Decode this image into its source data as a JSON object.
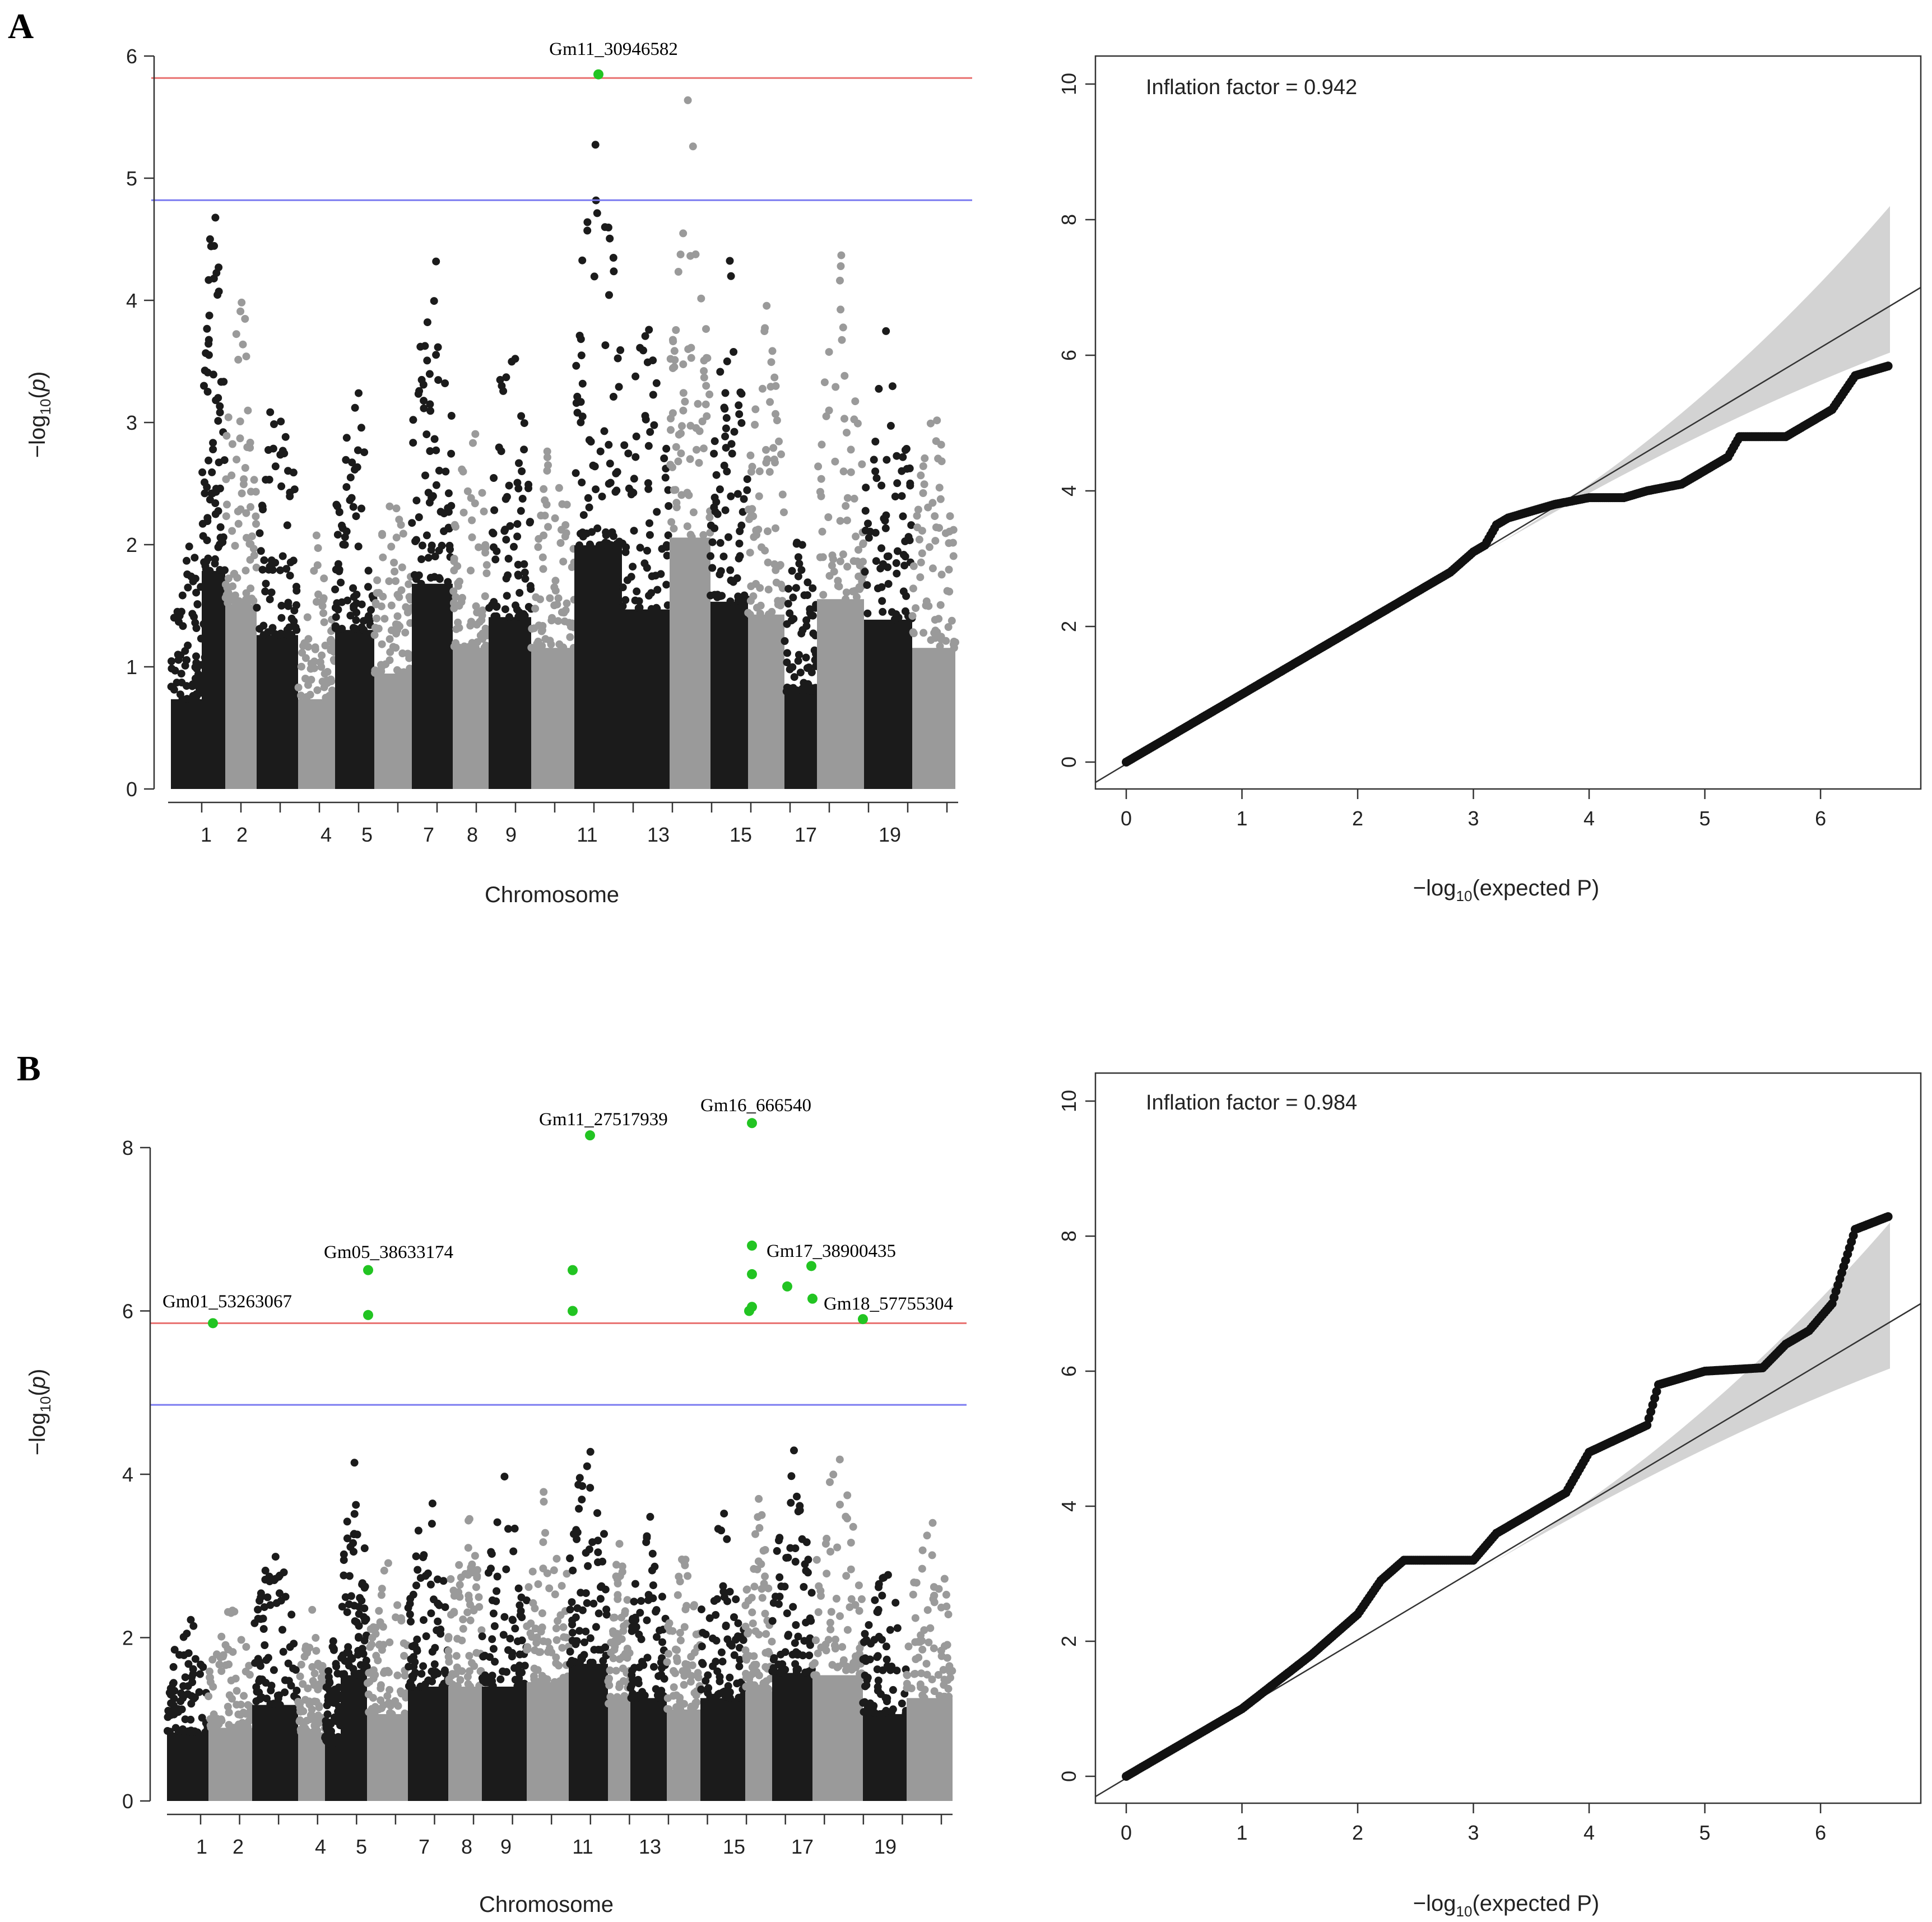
{
  "chart_data": [
    {
      "type": "scatter",
      "subtype": "manhattan",
      "panel": "A",
      "xlabel": "Chromosome",
      "ylabel": "-log10(p)",
      "ylim": [
        0,
        6
      ],
      "yticks": [
        0,
        1,
        2,
        3,
        4,
        5,
        6
      ],
      "chromosome_ticks": [
        "1",
        "2",
        "4",
        "5",
        "7",
        "8",
        "9",
        "11",
        "13",
        "15",
        "17",
        "19"
      ],
      "thresholds": [
        {
          "name": "significance",
          "value": 5.82,
          "color": "#e8706f"
        },
        {
          "name": "suggestive",
          "value": 4.82,
          "color": "#7b7bf0"
        }
      ],
      "significant_snps": [
        {
          "label": "Gm11_30946582",
          "chrom": 11,
          "value": 5.85
        }
      ]
    },
    {
      "type": "scatter",
      "subtype": "qq",
      "panel": "A",
      "xlabel": "−log10(expected P)",
      "ylabel": "",
      "xlim": [
        0,
        6.6
      ],
      "ylim": [
        0,
        10
      ],
      "xticks": [
        0,
        1,
        2,
        3,
        4,
        5,
        6
      ],
      "yticks": [
        0,
        2,
        4,
        6,
        8,
        10
      ],
      "annotation": "Inflation factor = 0.942",
      "points": [
        [
          0,
          0
        ],
        [
          0.5,
          0.5
        ],
        [
          1,
          1
        ],
        [
          1.5,
          1.5
        ],
        [
          2,
          2
        ],
        [
          2.5,
          2.5
        ],
        [
          2.8,
          2.8
        ],
        [
          3,
          3.1
        ],
        [
          3.1,
          3.2
        ],
        [
          3.2,
          3.5
        ],
        [
          3.3,
          3.6
        ],
        [
          3.5,
          3.7
        ],
        [
          3.7,
          3.8
        ],
        [
          4,
          3.9
        ],
        [
          4.3,
          3.9
        ],
        [
          4.5,
          4
        ],
        [
          4.8,
          4.1
        ],
        [
          5,
          4.3
        ],
        [
          5.2,
          4.5
        ],
        [
          5.3,
          4.8
        ],
        [
          5.7,
          4.8
        ],
        [
          5.8,
          4.9
        ],
        [
          6,
          5.1
        ],
        [
          6.1,
          5.2
        ],
        [
          6.3,
          5.7
        ],
        [
          6.6,
          5.85
        ]
      ]
    },
    {
      "type": "scatter",
      "subtype": "manhattan",
      "panel": "B",
      "xlabel": "Chromosome",
      "ylabel": "-log10(p)",
      "ylim": [
        0,
        8
      ],
      "yticks": [
        0,
        2,
        4,
        6,
        8
      ],
      "chromosome_ticks": [
        "1",
        "2",
        "4",
        "5",
        "7",
        "8",
        "9",
        "11",
        "13",
        "15",
        "17",
        "19"
      ],
      "thresholds": [
        {
          "name": "significance",
          "value": 5.85,
          "color": "#e8706f"
        },
        {
          "name": "suggestive",
          "value": 4.85,
          "color": "#7b7bf0"
        }
      ],
      "significant_snps": [
        {
          "label": "Gm01_53263067",
          "chrom": 1,
          "value": 5.85
        },
        {
          "label": "Gm05_38633174",
          "chrom": 5,
          "value": 6.5
        },
        {
          "label": "Gm11_27517939",
          "chrom": 11,
          "value": 8.15
        },
        {
          "label": "Gm16_666540",
          "chrom": 16,
          "value": 8.3
        },
        {
          "label": "Gm17_38900435",
          "chrom": 17,
          "value": 6.55
        },
        {
          "label": "Gm18_57755304",
          "chrom": 18,
          "value": 5.9
        }
      ]
    },
    {
      "type": "scatter",
      "subtype": "qq",
      "panel": "B",
      "xlabel": "−log10(expected P)",
      "ylabel": "",
      "xlim": [
        0,
        6.6
      ],
      "ylim": [
        0,
        10
      ],
      "xticks": [
        0,
        1,
        2,
        3,
        4,
        5,
        6
      ],
      "yticks": [
        0,
        2,
        4,
        6,
        8,
        10
      ],
      "annotation": "Inflation factor = 0.984",
      "points": [
        [
          0,
          0
        ],
        [
          0.5,
          0.5
        ],
        [
          1,
          1
        ],
        [
          1.3,
          1.4
        ],
        [
          1.6,
          1.8
        ],
        [
          1.8,
          2.1
        ],
        [
          2,
          2.4
        ],
        [
          2.2,
          2.9
        ],
        [
          2.4,
          3.2
        ],
        [
          3,
          3.2
        ],
        [
          3.2,
          3.6
        ],
        [
          3.5,
          3.9
        ],
        [
          3.8,
          4.2
        ],
        [
          4,
          4.8
        ],
        [
          4.5,
          5.2
        ],
        [
          4.6,
          5.8
        ],
        [
          5,
          6
        ],
        [
          5.5,
          6.05
        ],
        [
          5.7,
          6.4
        ],
        [
          5.9,
          6.6
        ],
        [
          6.1,
          7
        ],
        [
          6.3,
          8.1
        ],
        [
          6.6,
          8.3
        ]
      ]
    }
  ]
}
